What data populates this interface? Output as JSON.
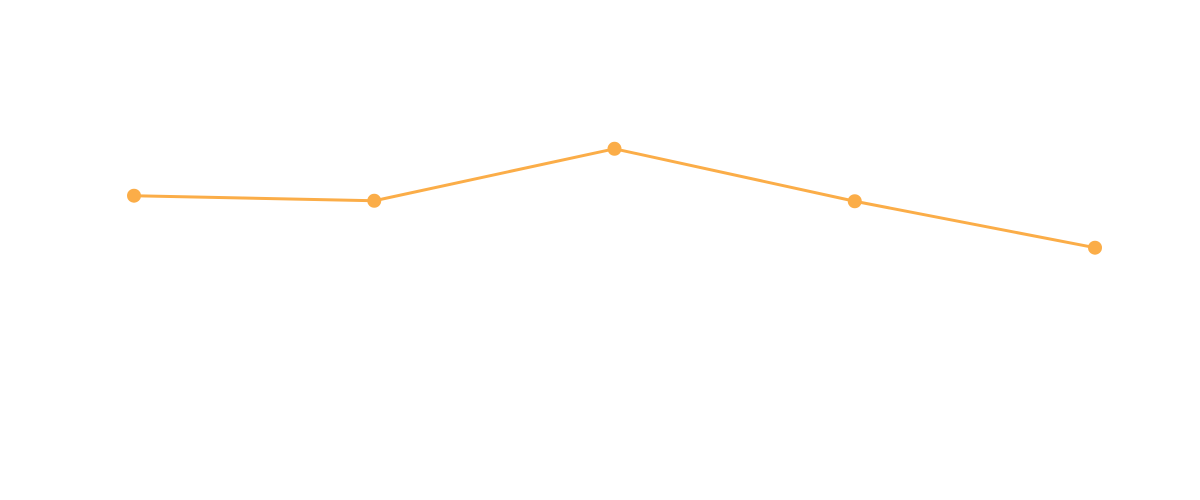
{
  "chart_data": {
    "type": "line",
    "x": [
      1,
      2,
      3,
      4,
      5
    ],
    "series": [
      {
        "values": [
          61.8,
          60.7,
          72.0,
          60.6,
          50.5
        ]
      }
    ],
    "ylim": [
      0,
      100
    ],
    "grid": false,
    "legend": "none",
    "colors": {
      "series": "#FBAD48"
    }
  }
}
